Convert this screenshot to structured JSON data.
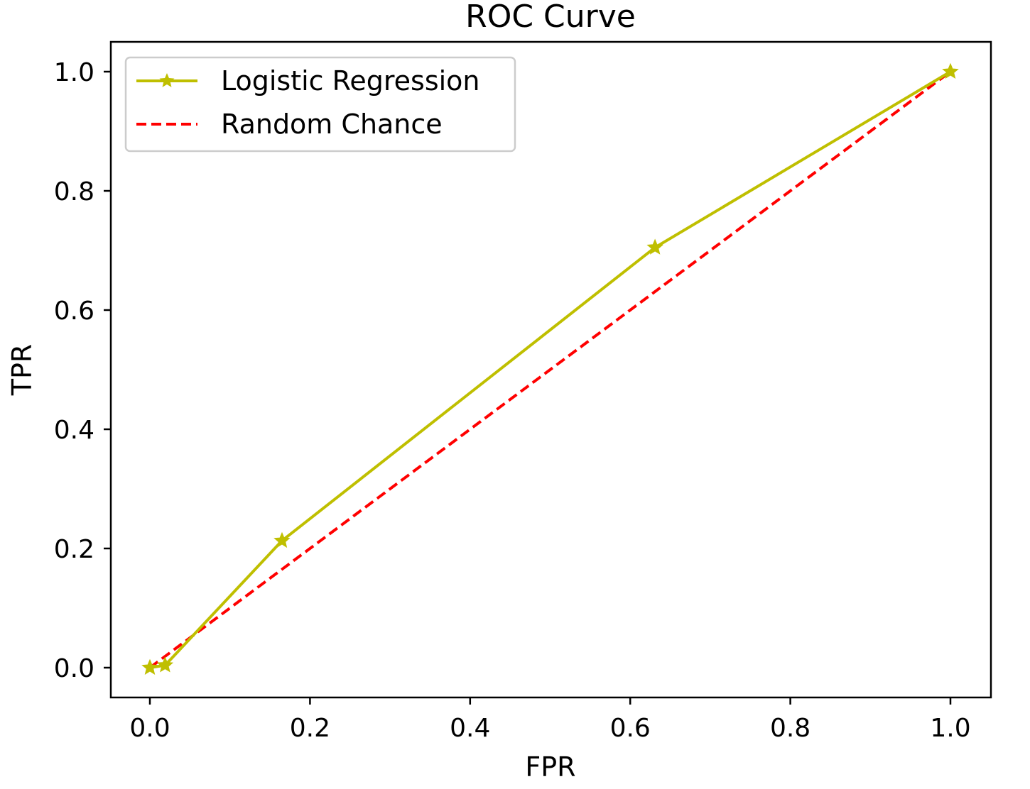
{
  "chart_data": {
    "type": "line",
    "title": "ROC Curve",
    "xlabel": "FPR",
    "ylabel": "TPR",
    "xlim": [
      -0.05,
      1.05
    ],
    "ylim": [
      -0.05,
      1.05
    ],
    "xticks": [
      "0.0",
      "0.2",
      "0.4",
      "0.6",
      "0.8",
      "1.0"
    ],
    "yticks": [
      "0.0",
      "0.2",
      "0.4",
      "0.6",
      "0.8",
      "1.0"
    ],
    "grid": false,
    "legend_placement": "upper-left",
    "series": [
      {
        "name": "Logistic Regression",
        "color": "#bfbf00",
        "style": "solid",
        "marker": "star",
        "x": [
          0.0,
          0.019,
          0.165,
          0.631,
          1.0
        ],
        "y": [
          0.0,
          0.004,
          0.213,
          0.705,
          1.0
        ]
      },
      {
        "name": "Random Chance",
        "color": "#ff0000",
        "style": "dashed",
        "marker": "none",
        "x": [
          0.0,
          1.0
        ],
        "y": [
          0.0,
          1.0
        ]
      }
    ]
  }
}
